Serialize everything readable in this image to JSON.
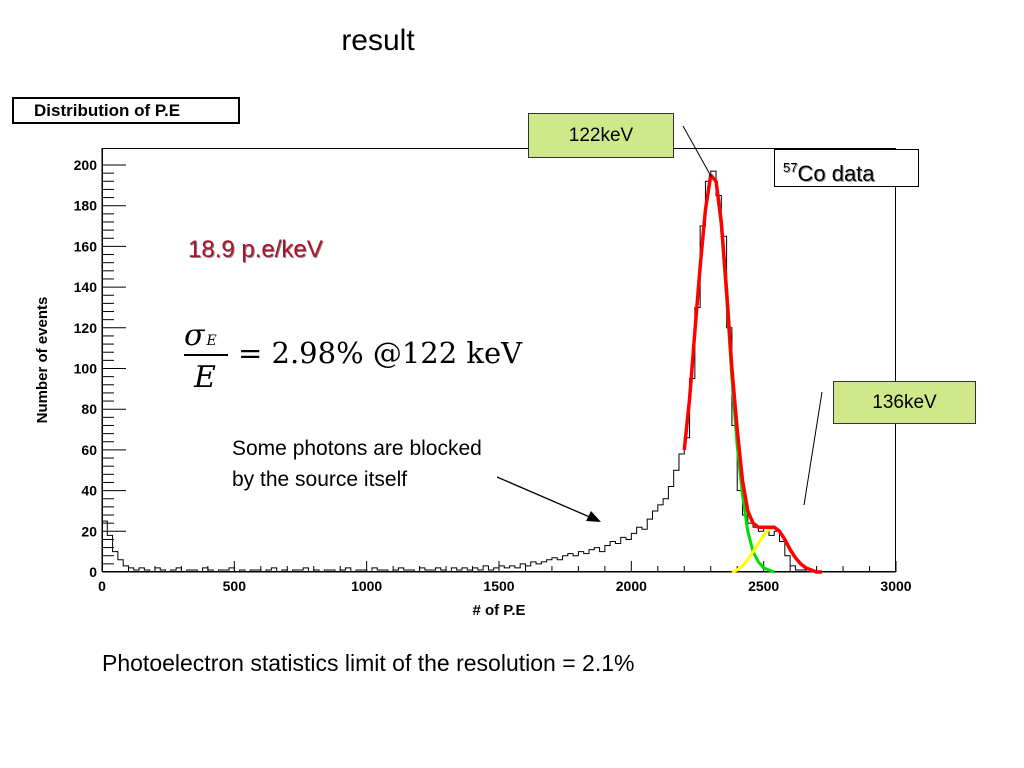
{
  "slide": {
    "title": "result",
    "footer": "Photoelectron statistics limit of the resolution = 2.1%"
  },
  "annotations": {
    "rate": "18.9 p.e/keV",
    "formula_numerator": "σ",
    "formula_subscript": "E",
    "formula_denominator": "E",
    "formula_rhs": "= 2.98% @122 keV",
    "note_line1": "Some photons are blocked",
    "note_line2": "by the source itself",
    "callout_122": "122keV",
    "callout_136": "136keV",
    "co_sup": "57",
    "co_text": "Co data"
  },
  "colors": {
    "histogram": "#000000",
    "total_fit": "#ff0000",
    "main_peak_fit": "#00dd00",
    "side_peak_fit": "#ffff00",
    "rate_text": "#b0102a",
    "callout_fill": "#cfe889"
  },
  "chart_data": {
    "type": "histogram",
    "title": "Distribution of P.E",
    "xlabel": "# of P.E",
    "ylabel": "Number of events",
    "xlim": [
      0,
      3000
    ],
    "ylim": [
      0,
      200
    ],
    "xticks": [
      0,
      500,
      1000,
      1500,
      2000,
      2500,
      3000
    ],
    "yticks": [
      0,
      20,
      40,
      60,
      80,
      100,
      120,
      140,
      160,
      180,
      200
    ],
    "bin_width": 20,
    "histogram": {
      "bin_starts": [
        0,
        20,
        40,
        60,
        80,
        100,
        120,
        140,
        160,
        180,
        200,
        220,
        240,
        260,
        280,
        300,
        320,
        340,
        360,
        380,
        400,
        420,
        440,
        460,
        480,
        500,
        520,
        540,
        560,
        580,
        600,
        620,
        640,
        660,
        680,
        700,
        720,
        740,
        760,
        780,
        800,
        820,
        840,
        860,
        880,
        900,
        920,
        940,
        960,
        980,
        1000,
        1020,
        1040,
        1060,
        1080,
        1100,
        1120,
        1140,
        1160,
        1180,
        1200,
        1220,
        1240,
        1260,
        1280,
        1300,
        1320,
        1340,
        1360,
        1380,
        1400,
        1420,
        1440,
        1460,
        1480,
        1500,
        1520,
        1540,
        1560,
        1580,
        1600,
        1620,
        1640,
        1660,
        1680,
        1700,
        1720,
        1740,
        1760,
        1780,
        1800,
        1820,
        1840,
        1860,
        1880,
        1900,
        1920,
        1940,
        1960,
        1980,
        2000,
        2020,
        2040,
        2060,
        2080,
        2100,
        2120,
        2140,
        2160,
        2180,
        2200,
        2220,
        2240,
        2260,
        2280,
        2300,
        2320,
        2340,
        2360,
        2380,
        2400,
        2420,
        2440,
        2460,
        2480,
        2500,
        2520,
        2540,
        2560,
        2580,
        2600,
        2620,
        2640,
        2660,
        2680
      ],
      "counts": [
        25,
        18,
        10,
        6,
        3,
        2,
        1,
        2,
        1,
        0,
        2,
        1,
        0,
        1,
        2,
        0,
        1,
        1,
        0,
        2,
        1,
        0,
        1,
        1,
        2,
        0,
        1,
        0,
        1,
        1,
        0,
        1,
        2,
        0,
        1,
        0,
        1,
        1,
        2,
        0,
        1,
        0,
        1,
        1,
        0,
        1,
        2,
        0,
        1,
        1,
        0,
        2,
        1,
        1,
        0,
        1,
        2,
        1,
        1,
        0,
        2,
        1,
        1,
        2,
        1,
        0,
        2,
        1,
        2,
        1,
        2,
        1,
        3,
        1,
        2,
        3,
        2,
        3,
        2,
        4,
        3,
        5,
        4,
        5,
        6,
        7,
        6,
        8,
        9,
        8,
        10,
        9,
        11,
        12,
        10,
        13,
        15,
        14,
        17,
        16,
        19,
        22,
        21,
        26,
        30,
        33,
        36,
        42,
        50,
        58,
        66,
        95,
        130,
        170,
        192,
        197,
        185,
        165,
        120,
        72,
        40,
        28,
        24,
        22,
        20,
        22,
        18,
        20,
        15,
        8,
        3,
        1,
        1,
        0,
        0
      ]
    },
    "fits": [
      {
        "name": "total",
        "color": "#ff0000",
        "x": [
          2200,
          2220,
          2240,
          2260,
          2280,
          2300,
          2320,
          2340,
          2360,
          2380,
          2400,
          2420,
          2440,
          2460,
          2480,
          2500,
          2520,
          2540,
          2560,
          2580,
          2600,
          2620,
          2640,
          2660,
          2680,
          2700,
          2720
        ],
        "y": [
          60,
          85,
          118,
          150,
          178,
          195,
          192,
          172,
          138,
          100,
          70,
          45,
          30,
          24,
          22,
          22,
          22,
          22,
          20,
          16,
          11,
          7,
          4,
          2,
          1,
          0,
          0
        ]
      },
      {
        "name": "main_peak",
        "color": "#00dd00",
        "x": [
          2320,
          2340,
          2360,
          2380,
          2400,
          2420,
          2440,
          2460,
          2480,
          2500,
          2520,
          2540
        ],
        "y": [
          192,
          170,
          135,
          95,
          62,
          38,
          20,
          10,
          5,
          2,
          1,
          0
        ]
      },
      {
        "name": "side_peak",
        "color": "#ffff00",
        "x": [
          2380,
          2400,
          2420,
          2440,
          2460,
          2480,
          2500,
          2520,
          2540,
          2560,
          2580
        ],
        "y": [
          0,
          1,
          3,
          6,
          10,
          14,
          18,
          21,
          22,
          20,
          16
        ]
      }
    ]
  }
}
